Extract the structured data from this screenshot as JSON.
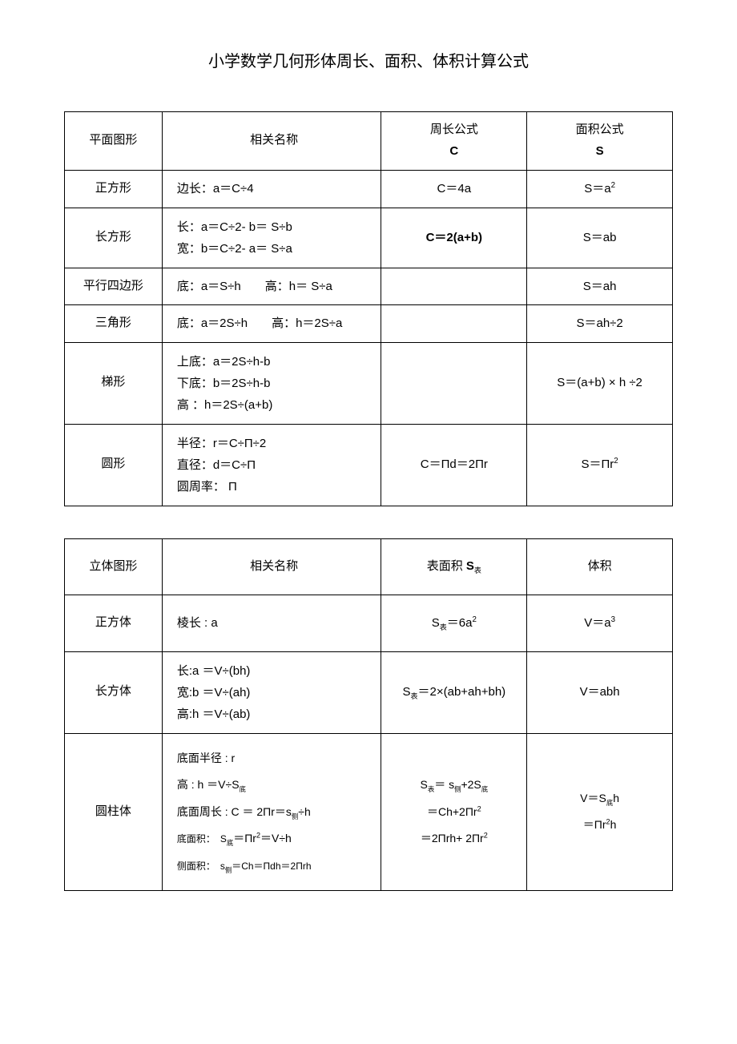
{
  "title": "小学数学几何形体周长、面积、体积计算公式",
  "table1": {
    "header": {
      "shape": "平面图形",
      "names": "相关名称",
      "perimeter_label": "周长公式",
      "perimeter_sym": "C",
      "area_label": "面积公式",
      "area_sym": "S"
    },
    "rows": [
      {
        "shape": "正方形",
        "names": "边长：a＝C÷4",
        "perimeter": "C＝4a",
        "area": "S＝a",
        "area_sup": "2"
      },
      {
        "shape": "长方形",
        "names_l1": "长：a＝C÷2- b＝ S÷b",
        "names_l2": "宽：b＝C÷2- a＝ S÷a",
        "perimeter": "C＝2(a+b)",
        "area": "S＝ab"
      },
      {
        "shape": "平行四边形",
        "names": "底：a＝S÷h　　高：h＝ S÷a",
        "perimeter": "",
        "area": "S＝ah"
      },
      {
        "shape": "三角形",
        "names": "底：a＝2S÷h　　高：h＝2S÷a",
        "perimeter": "",
        "area": "S＝ah÷2"
      },
      {
        "shape": "梯形",
        "names_l1": "上底：a＝2S÷h-b",
        "names_l2": "下底：b＝2S÷h-b",
        "names_l3": "高 ：h＝2S÷(a+b)",
        "perimeter": "",
        "area": "S＝(a+b) × h ÷2"
      },
      {
        "shape": "圆形",
        "names_l1": "半径：r＝C÷П÷2",
        "names_l2": "直径：d＝C÷П",
        "names_l3": "圆周率： П",
        "perimeter": "C＝Пd＝2Пr",
        "area": "S＝Пr",
        "area_sup": "2"
      }
    ]
  },
  "table2": {
    "header": {
      "shape": "立体图形",
      "names": "相关名称",
      "surface_label": "表面积 ",
      "surface_sym": "S",
      "surface_sub": "表",
      "volume": "体积"
    },
    "rows": [
      {
        "shape": "正方体",
        "names": "棱长 : a",
        "surface_pre": "S",
        "surface_sub": "表",
        "surface_post": "＝6a",
        "surface_sup": "2",
        "volume": "V＝a",
        "volume_sup": "3"
      },
      {
        "shape": "长方体",
        "names_l1": "长:a ＝V÷(bh)",
        "names_l2": "宽:b ＝V÷(ah)",
        "names_l3": "高:h  ＝V÷(ab)",
        "surface_pre": "S",
        "surface_sub": "表",
        "surface_post": "＝2×(ab+ah+bh)",
        "volume": "V＝abh"
      }
    ],
    "cylinder": {
      "shape": "圆柱体",
      "n1": "底面半径 : r",
      "n2_a": "高 : h  ＝V÷S",
      "n2_sub": "底",
      "n3_a": "底面周长 : C ＝ 2Пr＝s",
      "n3_sub": "侧",
      "n3_b": "÷h",
      "n4_lbl": "底面积：　S",
      "n4_sub": "底",
      "n4_a": "＝Пr",
      "n4_sup": "2",
      "n4_b": "＝V÷h",
      "n5_lbl": "侧面积：　s",
      "n5_sub": "侧",
      "n5_a": "＝Ch＝Пdh＝2Пrh",
      "s1_a": "S",
      "s1_sub1": "表",
      "s1_b": "＝ s",
      "s1_sub2": "侧",
      "s1_c": "+2S",
      "s1_sub3": "底",
      "s2_a": "＝Ch+2Пr",
      "s2_sup": "2",
      "s3_a": "＝2Пrh+ 2Пr",
      "s3_sup": "2",
      "v1_a": "V＝S",
      "v1_sub": "底",
      "v1_b": "h",
      "v2_a": "＝Пr",
      "v2_sup": "2",
      "v2_b": "h"
    }
  }
}
